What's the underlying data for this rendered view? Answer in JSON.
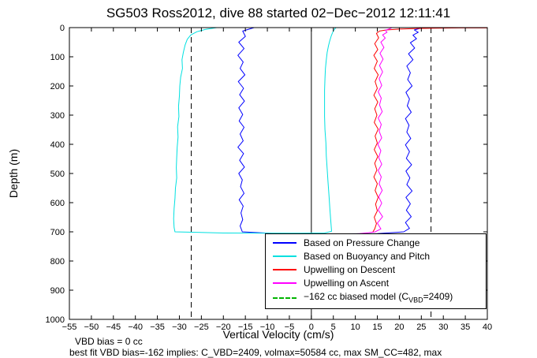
{
  "figure": {
    "footer_line1": "VBD bias = 0 cc",
    "footer_line2": "best fit VBD bias=-162 implies: C_VBD=2409, volmax=50584 cc, max SM_CC=482, max"
  },
  "chart_data": {
    "type": "line",
    "title": "SG503 Ross2012, dive 88 started 02−Dec−2012 12:11:41",
    "xlabel": "Vertical Velocity (cm/s)",
    "ylabel": "Depth (m)",
    "xlim": [
      -55,
      40
    ],
    "ylim": [
      0,
      1000
    ],
    "y_inverted": true,
    "grid": false,
    "x_ticks": [
      -55,
      -50,
      -45,
      -40,
      -35,
      -30,
      -25,
      -20,
      -15,
      -10,
      -5,
      0,
      5,
      10,
      15,
      20,
      25,
      30,
      35,
      40
    ],
    "x_tick_labels": [
      "−55",
      "−50",
      "−45",
      "−40",
      "−35",
      "−30",
      "−25",
      "−20",
      "−15",
      "−10",
      "−5",
      "0",
      "5",
      "10",
      "15",
      "20",
      "25",
      "30",
      "35",
      "40"
    ],
    "y_ticks": [
      0,
      100,
      200,
      300,
      400,
      500,
      600,
      700,
      800,
      900,
      1000
    ],
    "y_tick_labels": [
      "0",
      "100",
      "200",
      "300",
      "400",
      "500",
      "600",
      "700",
      "800",
      "900",
      "1000"
    ],
    "reference_lines": [
      {
        "x": 0,
        "style": "solid",
        "color": "#000000"
      },
      {
        "x": -27.3,
        "style": "dashed",
        "color": "#000000"
      },
      {
        "x": 27.2,
        "style": "dashed",
        "color": "#000000"
      }
    ],
    "series": [
      {
        "name": "Based on Pressure Change",
        "color": "#0000ff",
        "dash": false,
        "points": [
          [
            -13.0,
            0
          ],
          [
            -15.6,
            12
          ],
          [
            -15.0,
            30
          ],
          [
            -16.5,
            50
          ],
          [
            -15.3,
            72
          ],
          [
            -16.7,
            95
          ],
          [
            -15.5,
            118
          ],
          [
            -16.2,
            140
          ],
          [
            -15.1,
            162
          ],
          [
            -16.6,
            185
          ],
          [
            -15.4,
            208
          ],
          [
            -16.3,
            230
          ],
          [
            -15.2,
            252
          ],
          [
            -16.5,
            275
          ],
          [
            -15.6,
            298
          ],
          [
            -16.4,
            320
          ],
          [
            -15.3,
            342
          ],
          [
            -16.2,
            365
          ],
          [
            -15.5,
            388
          ],
          [
            -16.7,
            410
          ],
          [
            -15.4,
            432
          ],
          [
            -16.3,
            455
          ],
          [
            -15.2,
            478
          ],
          [
            -16.5,
            500
          ],
          [
            -15.7,
            522
          ],
          [
            -16.1,
            545
          ],
          [
            -15.3,
            568
          ],
          [
            -16.4,
            590
          ],
          [
            -15.5,
            612
          ],
          [
            -16.0,
            635
          ],
          [
            -15.6,
            658
          ],
          [
            -16.2,
            680
          ],
          [
            -15.7,
            700
          ],
          [
            -8.0,
            706
          ],
          [
            5.0,
            707
          ],
          [
            15.0,
            706
          ],
          [
            21.0,
            700
          ],
          [
            22.3,
            688
          ],
          [
            21.4,
            668
          ],
          [
            22.7,
            648
          ],
          [
            21.6,
            626
          ],
          [
            22.5,
            604
          ],
          [
            21.5,
            582
          ],
          [
            22.9,
            560
          ],
          [
            21.7,
            538
          ],
          [
            22.4,
            515
          ],
          [
            21.5,
            492
          ],
          [
            22.8,
            470
          ],
          [
            21.6,
            448
          ],
          [
            22.3,
            425
          ],
          [
            21.4,
            402
          ],
          [
            22.6,
            380
          ],
          [
            21.7,
            358
          ],
          [
            22.2,
            335
          ],
          [
            21.4,
            312
          ],
          [
            22.7,
            290
          ],
          [
            21.8,
            268
          ],
          [
            22.3,
            245
          ],
          [
            21.5,
            222
          ],
          [
            22.9,
            200
          ],
          [
            21.9,
            178
          ],
          [
            22.5,
            155
          ],
          [
            21.7,
            132
          ],
          [
            23.1,
            110
          ],
          [
            22.1,
            90
          ],
          [
            23.5,
            70
          ],
          [
            22.5,
            52
          ],
          [
            23.9,
            38
          ],
          [
            23.1,
            26
          ],
          [
            24.3,
            16
          ],
          [
            23.4,
            8
          ],
          [
            24.6,
            3
          ],
          [
            25.2,
            0
          ]
        ]
      },
      {
        "name": "Based on Buoyancy and Pitch",
        "color": "#00e0e0",
        "dash": false,
        "points": [
          [
            -21.5,
            0
          ],
          [
            -24.0,
            6
          ],
          [
            -26.0,
            14
          ],
          [
            -27.4,
            25
          ],
          [
            -28.2,
            40
          ],
          [
            -28.7,
            60
          ],
          [
            -29.1,
            85
          ],
          [
            -29.4,
            110
          ],
          [
            -29.3,
            140
          ],
          [
            -29.7,
            170
          ],
          [
            -29.9,
            200
          ],
          [
            -30.0,
            235
          ],
          [
            -30.2,
            270
          ],
          [
            -30.1,
            305
          ],
          [
            -30.4,
            340
          ],
          [
            -30.3,
            375
          ],
          [
            -30.5,
            410
          ],
          [
            -30.6,
            445
          ],
          [
            -30.7,
            480
          ],
          [
            -30.6,
            515
          ],
          [
            -30.9,
            550
          ],
          [
            -31.0,
            585
          ],
          [
            -31.2,
            620
          ],
          [
            -31.3,
            655
          ],
          [
            -31.2,
            685
          ],
          [
            -31.0,
            700
          ],
          [
            -20.0,
            704
          ],
          [
            -5.0,
            705
          ],
          [
            3.0,
            704
          ],
          [
            4.6,
            698
          ],
          [
            4.4,
            660
          ],
          [
            4.2,
            620
          ],
          [
            4.0,
            575
          ],
          [
            3.8,
            530
          ],
          [
            3.6,
            485
          ],
          [
            3.4,
            440
          ],
          [
            3.3,
            395
          ],
          [
            3.1,
            350
          ],
          [
            3.0,
            305
          ],
          [
            3.0,
            260
          ],
          [
            3.0,
            215
          ],
          [
            3.1,
            175
          ],
          [
            3.2,
            140
          ],
          [
            3.4,
            110
          ],
          [
            3.6,
            85
          ],
          [
            3.9,
            62
          ],
          [
            4.2,
            44
          ],
          [
            4.5,
            30
          ],
          [
            4.8,
            18
          ],
          [
            5.1,
            9
          ],
          [
            5.4,
            3
          ],
          [
            5.6,
            0
          ]
        ]
      },
      {
        "name": "Upwelling on Descent",
        "color": "#ff0000",
        "dash": false,
        "points": [
          [
            40.0,
            1
          ],
          [
            34.0,
            1
          ],
          [
            28.0,
            2
          ],
          [
            24.0,
            3
          ],
          [
            20.0,
            5
          ],
          [
            17.0,
            8
          ],
          [
            15.5,
            12
          ],
          [
            14.8,
            20
          ],
          [
            15.3,
            35
          ],
          [
            14.4,
            55
          ],
          [
            15.1,
            75
          ],
          [
            14.2,
            95
          ],
          [
            15.0,
            115
          ],
          [
            14.3,
            140
          ],
          [
            15.2,
            162
          ],
          [
            14.5,
            185
          ],
          [
            15.0,
            208
          ],
          [
            14.2,
            232
          ],
          [
            15.1,
            255
          ],
          [
            14.4,
            278
          ],
          [
            14.9,
            300
          ],
          [
            14.3,
            325
          ],
          [
            15.2,
            348
          ],
          [
            14.5,
            372
          ],
          [
            15.0,
            395
          ],
          [
            14.3,
            418
          ],
          [
            15.1,
            442
          ],
          [
            14.4,
            465
          ],
          [
            14.9,
            488
          ],
          [
            14.2,
            512
          ],
          [
            15.0,
            535
          ],
          [
            14.5,
            558
          ],
          [
            15.2,
            582
          ],
          [
            14.6,
            605
          ],
          [
            15.0,
            628
          ],
          [
            14.3,
            650
          ],
          [
            14.8,
            672
          ],
          [
            14.4,
            690
          ],
          [
            14.0,
            700
          ]
        ]
      },
      {
        "name": "Upwelling on Ascent",
        "color": "#ff00ff",
        "dash": false,
        "points": [
          [
            8.5,
            708
          ],
          [
            11.0,
            706
          ],
          [
            13.0,
            703
          ],
          [
            14.5,
            700
          ],
          [
            15.8,
            690
          ],
          [
            15.0,
            670
          ],
          [
            16.2,
            648
          ],
          [
            15.2,
            625
          ],
          [
            16.0,
            602
          ],
          [
            15.3,
            580
          ],
          [
            16.1,
            558
          ],
          [
            15.4,
            535
          ],
          [
            15.9,
            512
          ],
          [
            15.2,
            490
          ],
          [
            16.0,
            468
          ],
          [
            15.3,
            445
          ],
          [
            15.8,
            422
          ],
          [
            15.1,
            400
          ],
          [
            16.0,
            378
          ],
          [
            15.4,
            355
          ],
          [
            15.9,
            332
          ],
          [
            15.2,
            310
          ],
          [
            16.1,
            288
          ],
          [
            15.5,
            265
          ],
          [
            15.9,
            242
          ],
          [
            15.2,
            220
          ],
          [
            16.0,
            198
          ],
          [
            15.4,
            175
          ],
          [
            16.2,
            152
          ],
          [
            15.5,
            130
          ],
          [
            16.3,
            108
          ],
          [
            15.6,
            88
          ],
          [
            16.5,
            68
          ],
          [
            15.8,
            50
          ],
          [
            16.8,
            36
          ],
          [
            16.2,
            25
          ],
          [
            17.2,
            16
          ],
          [
            16.8,
            9
          ],
          [
            17.8,
            4
          ],
          [
            18.3,
            0
          ]
        ]
      },
      {
        "name": "−162 cc biased model (C_VBD=2409)",
        "color": "#00b400",
        "dash": true,
        "points": []
      }
    ]
  },
  "legend": {
    "entries": [
      {
        "label": "Based on Pressure Change",
        "color": "#0000ff",
        "dash": false
      },
      {
        "label": "Based on Buoyancy and Pitch",
        "color": "#00e0e0",
        "dash": false
      },
      {
        "label": "Upwelling on Descent",
        "color": "#ff0000",
        "dash": false
      },
      {
        "label": "Upwelling on Ascent",
        "color": "#ff00ff",
        "dash": false
      },
      {
        "label_pre": "−162 cc biased model (C",
        "label_sub": "VBD",
        "label_post": "=2409)",
        "color": "#00b400",
        "dash": true
      }
    ]
  }
}
